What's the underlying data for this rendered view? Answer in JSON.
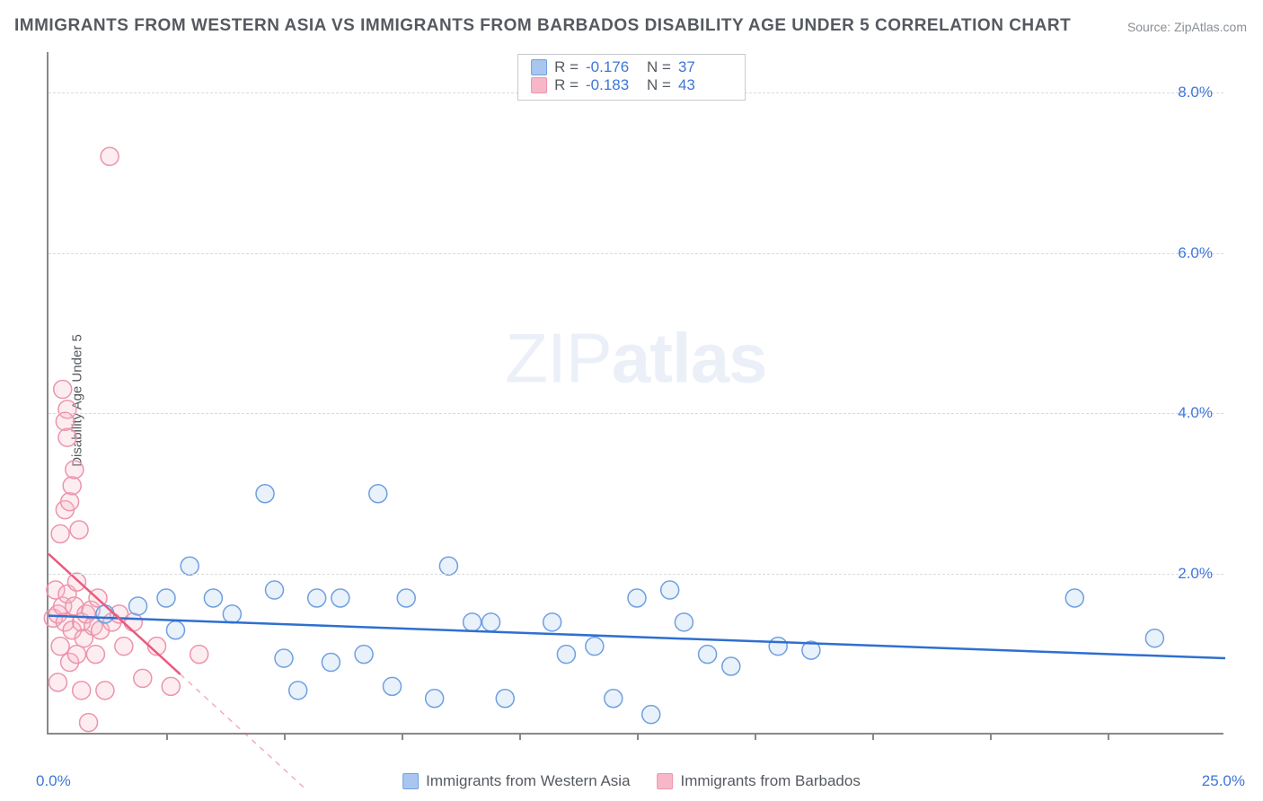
{
  "title": "IMMIGRANTS FROM WESTERN ASIA VS IMMIGRANTS FROM BARBADOS DISABILITY AGE UNDER 5 CORRELATION CHART",
  "source_label": "Source: ",
  "source_name": "ZipAtlas.com",
  "ylabel": "Disability Age Under 5",
  "watermark_light": "ZIP",
  "watermark_bold": "atlas",
  "chart": {
    "type": "scatter",
    "xlim": [
      0,
      25
    ],
    "ylim": [
      0,
      8.5
    ],
    "x_tick_label_start": "0.0%",
    "x_tick_label_end": "25.0%",
    "x_minor_ticks": [
      2.5,
      5,
      7.5,
      10,
      12.5,
      15,
      17.5,
      20,
      22.5
    ],
    "y_gridlines": [
      2,
      4,
      6,
      8
    ],
    "y_tick_labels": [
      "2.0%",
      "4.0%",
      "6.0%",
      "8.0%"
    ],
    "background_color": "#ffffff",
    "grid_color": "#d7dbdf",
    "axis_color": "#888888",
    "tick_label_color": "#3f76d9",
    "title_color": "#555a60",
    "title_fontsize": 19,
    "label_fontsize": 15,
    "tick_fontsize": 17,
    "marker_radius": 10,
    "marker_stroke_width": 1.5,
    "marker_fill_opacity": 0.25,
    "line_width": 2.5,
    "series": [
      {
        "key": "western_asia",
        "label": "Immigrants from Western Asia",
        "color_fill": "#a8c6f0",
        "color_stroke": "#6fa0e0",
        "line_color": "#2f6fd0",
        "r_value": "-0.176",
        "n_value": "37",
        "trend": {
          "x1": 0,
          "y1": 1.48,
          "x2": 25,
          "y2": 0.95
        },
        "points": [
          [
            1.2,
            1.5
          ],
          [
            1.9,
            1.6
          ],
          [
            2.5,
            1.7
          ],
          [
            2.7,
            1.3
          ],
          [
            3.0,
            2.1
          ],
          [
            3.5,
            1.7
          ],
          [
            3.9,
            1.5
          ],
          [
            4.6,
            3.0
          ],
          [
            4.8,
            1.8
          ],
          [
            5.0,
            0.95
          ],
          [
            5.3,
            0.55
          ],
          [
            5.7,
            1.7
          ],
          [
            6.0,
            0.9
          ],
          [
            6.2,
            1.7
          ],
          [
            6.7,
            1.0
          ],
          [
            7.0,
            3.0
          ],
          [
            7.3,
            0.6
          ],
          [
            7.6,
            1.7
          ],
          [
            8.2,
            0.45
          ],
          [
            8.5,
            2.1
          ],
          [
            9.0,
            1.4
          ],
          [
            9.4,
            1.4
          ],
          [
            9.7,
            0.45
          ],
          [
            10.7,
            1.4
          ],
          [
            11.0,
            1.0
          ],
          [
            11.6,
            1.1
          ],
          [
            12.0,
            0.45
          ],
          [
            12.5,
            1.7
          ],
          [
            12.8,
            0.25
          ],
          [
            13.2,
            1.8
          ],
          [
            13.5,
            1.4
          ],
          [
            14.5,
            0.85
          ],
          [
            15.5,
            1.1
          ],
          [
            16.2,
            1.05
          ],
          [
            21.8,
            1.7
          ],
          [
            23.5,
            1.2
          ],
          [
            14.0,
            1.0
          ]
        ]
      },
      {
        "key": "barbados",
        "label": "Immigrants from Barbados",
        "color_fill": "#f6b8c8",
        "color_stroke": "#ec94ac",
        "line_color": "#ea5a7e",
        "r_value": "-0.183",
        "n_value": "43",
        "trend": {
          "x1": 0,
          "y1": 2.25,
          "x2": 2.8,
          "y2": 0.75
        },
        "trend_dash": {
          "x1": 2.8,
          "y1": 0.75,
          "x2": 5.5,
          "y2": -0.7
        },
        "points": [
          [
            0.1,
            1.45
          ],
          [
            0.15,
            1.8
          ],
          [
            0.2,
            1.5
          ],
          [
            0.2,
            0.65
          ],
          [
            0.25,
            2.5
          ],
          [
            0.25,
            1.1
          ],
          [
            0.3,
            1.6
          ],
          [
            0.3,
            4.3
          ],
          [
            0.35,
            1.4
          ],
          [
            0.35,
            2.8
          ],
          [
            0.4,
            1.75
          ],
          [
            0.4,
            3.7
          ],
          [
            0.4,
            4.05
          ],
          [
            0.45,
            2.9
          ],
          [
            0.45,
            0.9
          ],
          [
            0.5,
            3.1
          ],
          [
            0.5,
            1.3
          ],
          [
            0.55,
            1.6
          ],
          [
            0.55,
            3.3
          ],
          [
            0.6,
            1.0
          ],
          [
            0.6,
            1.9
          ],
          [
            0.65,
            2.55
          ],
          [
            0.7,
            1.4
          ],
          [
            0.7,
            0.55
          ],
          [
            0.75,
            1.2
          ],
          [
            0.8,
            1.5
          ],
          [
            0.85,
            0.15
          ],
          [
            0.9,
            1.55
          ],
          [
            0.95,
            1.35
          ],
          [
            1.0,
            1.0
          ],
          [
            1.05,
            1.7
          ],
          [
            1.1,
            1.3
          ],
          [
            1.2,
            0.55
          ],
          [
            1.3,
            7.2
          ],
          [
            1.35,
            1.4
          ],
          [
            1.5,
            1.5
          ],
          [
            1.6,
            1.1
          ],
          [
            1.8,
            1.4
          ],
          [
            2.0,
            0.7
          ],
          [
            2.3,
            1.1
          ],
          [
            2.6,
            0.6
          ],
          [
            3.2,
            1.0
          ],
          [
            0.35,
            3.9
          ]
        ]
      }
    ]
  },
  "legend_top": {
    "r_label": "R =",
    "n_label": "N ="
  }
}
